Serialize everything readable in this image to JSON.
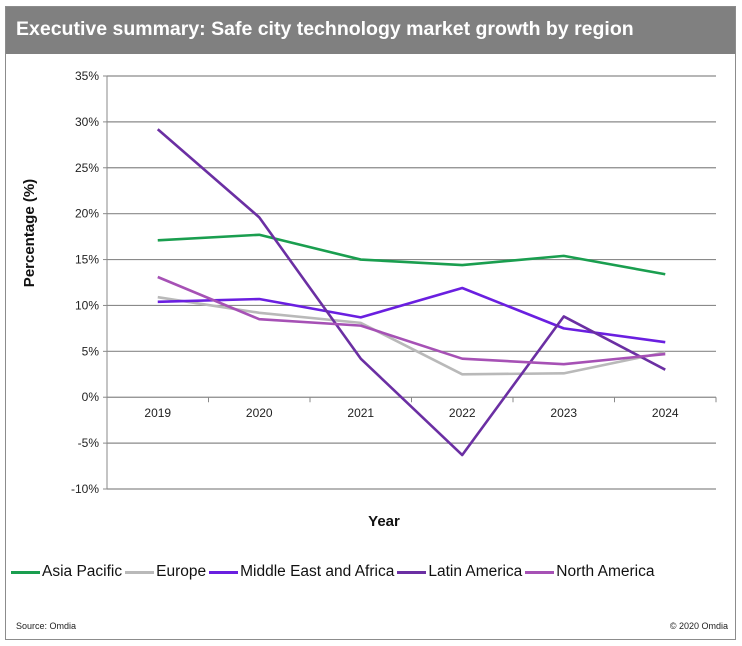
{
  "header": {
    "title": "Executive summary: Safe city technology market growth by region"
  },
  "footer": {
    "source": "Source: Omdia",
    "copyright": "© 2020 Omdia"
  },
  "chart_data": {
    "type": "line",
    "title": "Executive summary: Safe city technology market growth by region",
    "xlabel": "Year",
    "ylabel": "Percentage (%)",
    "categories": [
      "2019",
      "2020",
      "2021",
      "2022",
      "2023",
      "2024"
    ],
    "ylim": [
      -10,
      35
    ],
    "yticks": [
      35,
      30,
      25,
      20,
      15,
      10,
      5,
      0,
      -5,
      -10
    ],
    "ytick_labels": [
      "35%",
      "30%",
      "25%",
      "20%",
      "15%",
      "10%",
      "5%",
      "0%",
      "-5%",
      "-10%"
    ],
    "grid": true,
    "legend_position": "bottom",
    "series": [
      {
        "name": "Asia Pacific",
        "color": "#1a9e4f",
        "values": [
          17.1,
          17.7,
          15.0,
          14.4,
          15.4,
          13.4
        ]
      },
      {
        "name": "Europe",
        "color": "#b9b9b9",
        "values": [
          10.9,
          9.2,
          8.1,
          2.5,
          2.6,
          4.9
        ]
      },
      {
        "name": "Middle East and Africa",
        "color": "#6a1fe0",
        "values": [
          10.4,
          10.7,
          8.7,
          11.9,
          7.5,
          6.0
        ]
      },
      {
        "name": "Latin America",
        "color": "#6b2fa3",
        "values": [
          29.2,
          19.6,
          4.2,
          -6.3,
          8.8,
          3.0
        ]
      },
      {
        "name": "North America",
        "color": "#a651b5",
        "values": [
          13.1,
          8.5,
          7.8,
          4.2,
          3.6,
          4.7
        ]
      }
    ]
  }
}
